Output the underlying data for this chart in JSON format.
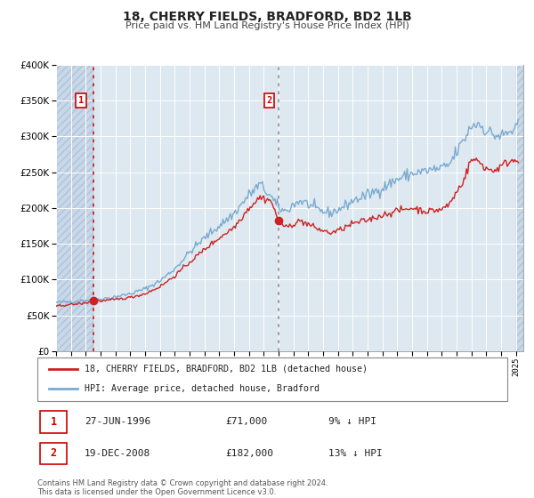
{
  "title": "18, CHERRY FIELDS, BRADFORD, BD2 1LB",
  "subtitle": "Price paid vs. HM Land Registry's House Price Index (HPI)",
  "legend_entry1": "18, CHERRY FIELDS, BRADFORD, BD2 1LB (detached house)",
  "legend_entry2": "HPI: Average price, detached house, Bradford",
  "sale1_date": "27-JUN-1996",
  "sale1_price": "£71,000",
  "sale1_hpi": "9% ↓ HPI",
  "sale2_date": "19-DEC-2008",
  "sale2_price": "£182,000",
  "sale2_hpi": "13% ↓ HPI",
  "footer": "Contains HM Land Registry data © Crown copyright and database right 2024.\nThis data is licensed under the Open Government Licence v3.0.",
  "sale1_date_num": 1996.49,
  "sale1_price_val": 71000,
  "sale2_date_num": 2008.97,
  "sale2_price_val": 182000,
  "hpi_color": "#7aaad0",
  "price_color": "#cc2222",
  "background_plot": "#dde8f0",
  "background_hatch_color": "#c8d8e8",
  "grid_color": "#ffffff",
  "ylim": [
    0,
    400000
  ],
  "xlim_start": 1994.0,
  "xlim_end": 2025.5,
  "hpi_anchors": [
    [
      1994.0,
      68000
    ],
    [
      1995.0,
      69000
    ],
    [
      1996.0,
      71000
    ],
    [
      1997.0,
      72500
    ],
    [
      1998.0,
      76000
    ],
    [
      1999.0,
      80000
    ],
    [
      2000.0,
      87000
    ],
    [
      2001.0,
      98000
    ],
    [
      2002.0,
      115000
    ],
    [
      2003.0,
      138000
    ],
    [
      2004.0,
      158000
    ],
    [
      2005.0,
      175000
    ],
    [
      2006.0,
      192000
    ],
    [
      2007.0,
      218000
    ],
    [
      2007.75,
      233000
    ],
    [
      2008.5,
      215000
    ],
    [
      2009.0,
      200000
    ],
    [
      2009.5,
      195000
    ],
    [
      2010.0,
      205000
    ],
    [
      2010.5,
      210000
    ],
    [
      2011.0,
      205000
    ],
    [
      2011.5,
      198000
    ],
    [
      2012.0,
      195000
    ],
    [
      2012.5,
      193000
    ],
    [
      2013.0,
      197000
    ],
    [
      2013.5,
      203000
    ],
    [
      2014.0,
      210000
    ],
    [
      2015.0,
      218000
    ],
    [
      2016.0,
      228000
    ],
    [
      2017.0,
      240000
    ],
    [
      2018.0,
      248000
    ],
    [
      2019.0,
      252000
    ],
    [
      2020.0,
      255000
    ],
    [
      2020.5,
      260000
    ],
    [
      2021.0,
      278000
    ],
    [
      2021.5,
      295000
    ],
    [
      2022.0,
      315000
    ],
    [
      2022.5,
      318000
    ],
    [
      2023.0,
      308000
    ],
    [
      2023.5,
      302000
    ],
    [
      2024.0,
      300000
    ],
    [
      2024.5,
      305000
    ],
    [
      2025.2,
      312000
    ]
  ],
  "price_anchors": [
    [
      1994.0,
      63000
    ],
    [
      1995.0,
      65000
    ],
    [
      1996.0,
      67000
    ],
    [
      1996.49,
      71000
    ],
    [
      1997.0,
      70000
    ],
    [
      1998.0,
      72000
    ],
    [
      1999.0,
      75000
    ],
    [
      2000.0,
      80000
    ],
    [
      2001.0,
      90000
    ],
    [
      2002.0,
      105000
    ],
    [
      2003.0,
      124000
    ],
    [
      2004.0,
      142000
    ],
    [
      2005.0,
      158000
    ],
    [
      2006.0,
      173000
    ],
    [
      2007.0,
      200000
    ],
    [
      2007.75,
      215000
    ],
    [
      2008.5,
      210000
    ],
    [
      2008.97,
      182000
    ],
    [
      2009.5,
      172000
    ],
    [
      2010.0,
      178000
    ],
    [
      2010.5,
      182000
    ],
    [
      2011.0,
      177000
    ],
    [
      2011.5,
      172000
    ],
    [
      2012.0,
      168000
    ],
    [
      2012.5,
      165000
    ],
    [
      2013.0,
      168000
    ],
    [
      2013.5,
      173000
    ],
    [
      2014.0,
      178000
    ],
    [
      2015.0,
      183000
    ],
    [
      2016.0,
      190000
    ],
    [
      2017.0,
      196000
    ],
    [
      2018.0,
      200000
    ],
    [
      2019.0,
      195000
    ],
    [
      2020.0,
      198000
    ],
    [
      2020.5,
      205000
    ],
    [
      2021.0,
      222000
    ],
    [
      2021.5,
      240000
    ],
    [
      2022.0,
      268000
    ],
    [
      2022.5,
      265000
    ],
    [
      2023.0,
      255000
    ],
    [
      2023.5,
      252000
    ],
    [
      2024.0,
      258000
    ],
    [
      2024.5,
      265000
    ],
    [
      2025.2,
      268000
    ]
  ]
}
